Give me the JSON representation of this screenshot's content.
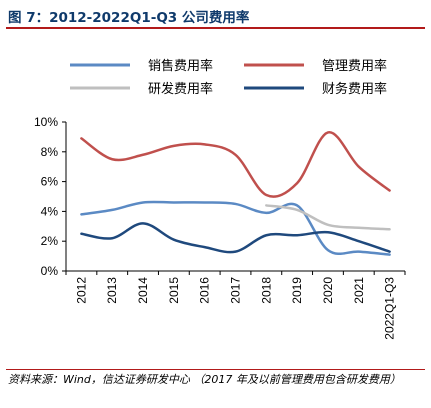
{
  "title": "图 7：2012-2022Q1-Q3 公司费用率",
  "source": "资料来源：Wind，信达证券研发中心 （2017 年及以前管理费用包含研发费用）",
  "chart_data": {
    "type": "line",
    "categories": [
      "2012",
      "2013",
      "2014",
      "2015",
      "2016",
      "2017",
      "2018",
      "2019",
      "2020",
      "2021",
      "2022Q1-Q3"
    ],
    "ylim": [
      0,
      10
    ],
    "yticks": [
      "0%",
      "2%",
      "4%",
      "6%",
      "8%",
      "10%"
    ],
    "grid": false,
    "legend_position": "top",
    "series": [
      {
        "name": "销售费用率",
        "color": "#5b8ac4",
        "values": [
          3.8,
          4.1,
          4.6,
          4.6,
          4.6,
          4.5,
          3.9,
          4.4,
          1.4,
          1.3,
          1.1
        ]
      },
      {
        "name": "管理费用率",
        "color": "#c0504d",
        "values": [
          8.9,
          7.5,
          7.8,
          8.4,
          8.5,
          7.8,
          5.1,
          5.9,
          9.3,
          7.0,
          5.4
        ]
      },
      {
        "name": "研发费用率",
        "color": "#bfbfbf",
        "values": [
          null,
          null,
          null,
          null,
          null,
          null,
          4.4,
          4.1,
          3.1,
          2.9,
          2.8
        ]
      },
      {
        "name": "财务费用率",
        "color": "#1f497d",
        "values": [
          2.5,
          2.2,
          3.2,
          2.1,
          1.6,
          1.3,
          2.4,
          2.4,
          2.6,
          2.0,
          1.3
        ]
      }
    ]
  }
}
